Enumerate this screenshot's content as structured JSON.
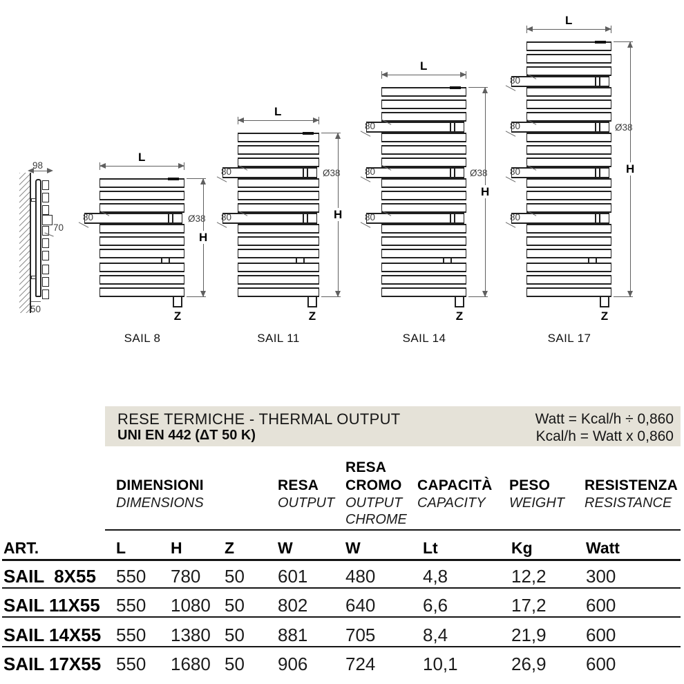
{
  "diagram": {
    "labels": {
      "length": "L",
      "height": "H",
      "bottom_connection": "Z",
      "hook_offset": "80",
      "pipe_diameter": "Ø38"
    },
    "side_view": {
      "total_depth": "98",
      "hook_depth": "70",
      "bottom_offset": "50"
    },
    "radiators": [
      {
        "name": "SAIL 8",
        "offsets": [
          {
            "show_80": true,
            "show_diameter": true
          }
        ]
      },
      {
        "name": "SAIL 11",
        "offsets": [
          {
            "show_80": true,
            "show_diameter": true
          },
          {
            "show_80": true,
            "show_diameter": false
          }
        ]
      },
      {
        "name": "SAIL 14",
        "offsets": [
          {
            "show_80": true,
            "show_diameter": false
          },
          {
            "show_80": true,
            "show_diameter": true
          },
          {
            "show_80": true,
            "show_diameter": false
          }
        ]
      },
      {
        "name": "SAIL 17",
        "offsets": [
          {
            "show_80": true,
            "show_diameter": false
          },
          {
            "show_80": true,
            "show_diameter": true
          },
          {
            "show_80": true,
            "show_diameter": false
          },
          {
            "show_80": true,
            "show_diameter": false
          }
        ]
      }
    ]
  },
  "band": {
    "title_line1": "RESE TERMICHE - THERMAL OUTPUT",
    "title_line2": "UNI EN 442 (ΔT 50 K)",
    "formula_line1": "Watt = Kcal/h ÷ 0,860",
    "formula_line2": "Kcal/h = Watt x 0,860"
  },
  "table": {
    "art_header": "ART.",
    "groups": [
      {
        "title_lines": [
          "DIMENSIONI"
        ],
        "subtitle_lines": [
          "DIMENSIONS"
        ]
      },
      {
        "title_lines": [
          "RESA"
        ],
        "subtitle_lines": [
          "OUTPUT"
        ]
      },
      {
        "title_lines": [
          "RESA",
          "CROMO"
        ],
        "subtitle_lines": [
          "OUTPUT",
          "CHROME"
        ]
      },
      {
        "title_lines": [
          "CAPACITÀ"
        ],
        "subtitle_lines": [
          "CAPACITY"
        ]
      },
      {
        "title_lines": [
          "PESO"
        ],
        "subtitle_lines": [
          "WEIGHT"
        ]
      },
      {
        "title_lines": [
          "RESISTENZA"
        ],
        "subtitle_lines": [
          "RESISTANCE"
        ]
      }
    ],
    "unit_headers": [
      "L",
      "H",
      "Z",
      "W",
      "W",
      "Lt",
      "Kg",
      "Watt"
    ],
    "rows": [
      {
        "art": "SAIL  8X55",
        "values": [
          "550",
          "780",
          "50",
          "601",
          "480",
          "4,8",
          "12,2",
          "300"
        ]
      },
      {
        "art": "SAIL 11X55",
        "values": [
          "550",
          "1080",
          "50",
          "802",
          "640",
          "6,6",
          "17,2",
          "600"
        ]
      },
      {
        "art": "SAIL 14X55",
        "values": [
          "550",
          "1380",
          "50",
          "881",
          "705",
          "8,4",
          "21,9",
          "600"
        ]
      },
      {
        "art": "SAIL 17X55",
        "values": [
          "550",
          "1680",
          "50",
          "906",
          "724",
          "10,1",
          "26,9",
          "600"
        ]
      }
    ]
  }
}
